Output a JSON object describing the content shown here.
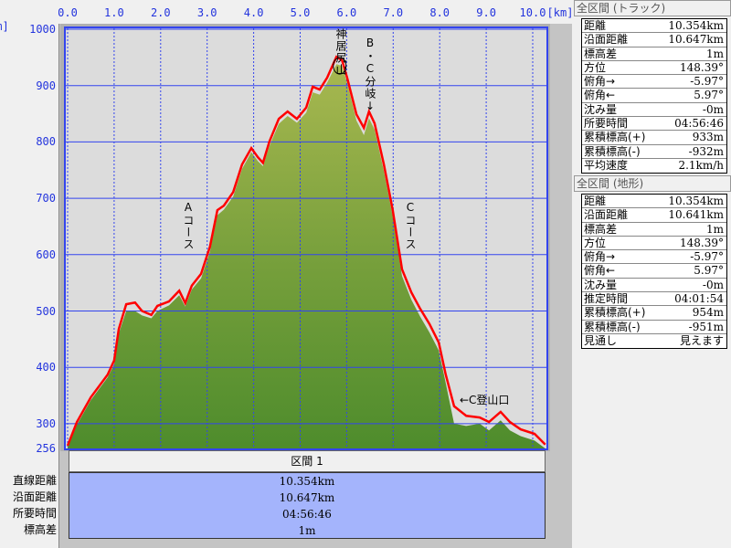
{
  "axis": {
    "x_unit": "[km]",
    "y_unit": "[m]",
    "x_ticks": [
      "0.0",
      "1.0",
      "2.0",
      "3.0",
      "4.0",
      "5.0",
      "6.0",
      "7.0",
      "8.0",
      "9.0",
      "10.0"
    ],
    "y_ticks": [
      "1000",
      "900",
      "800",
      "700",
      "600",
      "500",
      "400",
      "300",
      "256"
    ]
  },
  "chart_data": {
    "type": "area",
    "xlabel": "[km]",
    "ylabel": "[m]",
    "xlim": [
      0,
      10.3
    ],
    "ylim": [
      256,
      1000
    ],
    "grid": true,
    "series": [
      {
        "name": "track",
        "color": "#ff0000",
        "x": [
          0,
          0.2,
          0.5,
          0.86,
          1.0,
          1.1,
          1.26,
          1.45,
          1.6,
          1.8,
          1.93,
          2.18,
          2.4,
          2.53,
          2.67,
          2.87,
          3.06,
          3.22,
          3.36,
          3.56,
          3.75,
          3.95,
          4.09,
          4.2,
          4.34,
          4.54,
          4.73,
          4.93,
          5.13,
          5.27,
          5.42,
          5.58,
          5.78,
          5.9,
          6.01,
          6.21,
          6.37,
          6.48,
          6.6,
          6.8,
          6.99,
          7.19,
          7.39,
          7.58,
          7.78,
          7.98,
          8.13,
          8.31,
          8.57,
          8.86,
          9.06,
          9.31,
          9.51,
          9.74,
          10.04,
          10.27
        ],
        "y": [
          261,
          303,
          347,
          387,
          412,
          468,
          512,
          515,
          500,
          493,
          509,
          517,
          536,
          514,
          545,
          566,
          614,
          679,
          687,
          711,
          760,
          789,
          773,
          763,
          801,
          841,
          854,
          841,
          861,
          898,
          893,
          914,
          951,
          945,
          914,
          849,
          825,
          854,
          833,
          760,
          679,
          574,
          533,
          504,
          477,
          444,
          387,
          331,
          314,
          311,
          303,
          321,
          303,
          290,
          282,
          263
        ]
      },
      {
        "name": "terrain",
        "color": "#5a9a32",
        "x": [
          0,
          0.2,
          0.5,
          0.86,
          1.0,
          1.1,
          1.26,
          1.45,
          1.6,
          1.8,
          1.93,
          2.18,
          2.4,
          2.53,
          2.67,
          2.87,
          3.06,
          3.22,
          3.36,
          3.56,
          3.75,
          3.95,
          4.09,
          4.2,
          4.34,
          4.54,
          4.73,
          4.93,
          5.13,
          5.27,
          5.42,
          5.58,
          5.78,
          5.9,
          6.01,
          6.21,
          6.37,
          6.48,
          6.6,
          6.8,
          6.99,
          7.19,
          7.39,
          7.58,
          7.78,
          7.98,
          8.13,
          8.31,
          8.57,
          8.86,
          9.06,
          9.31,
          9.51,
          9.74,
          10.04,
          10.27
        ],
        "y": [
          258,
          298,
          342,
          382,
          405,
          460,
          500,
          500,
          492,
          487,
          500,
          510,
          528,
          508,
          538,
          558,
          605,
          670,
          680,
          703,
          752,
          782,
          766,
          757,
          793,
          832,
          846,
          834,
          852,
          888,
          884,
          905,
          938,
          935,
          905,
          838,
          812,
          842,
          822,
          748,
          668,
          562,
          520,
          490,
          462,
          430,
          372,
          300,
          296,
          300,
          288,
          306,
          288,
          278,
          270,
          256
        ]
      }
    ],
    "annotations": [
      "神居尻山",
      "B・C分岐↓",
      "Aコース",
      "Cコース",
      "←C登山口"
    ]
  },
  "section": {
    "header": "区間 1",
    "labels": [
      "直線距離",
      "沿面距離",
      "所要時間",
      "標高差"
    ],
    "values": [
      "10.354km",
      "10.647km",
      "04:56:46",
      "1m"
    ]
  },
  "panels": [
    {
      "title": "全区間 (トラック)",
      "rows": [
        {
          "k": "距離",
          "v": "10.354km"
        },
        {
          "k": "沿面距離",
          "v": "10.647km"
        },
        {
          "k": "標高差",
          "v": "1m"
        },
        {
          "k": "方位",
          "v": "148.39°"
        },
        {
          "k": "俯角→",
          "v": "-5.97°"
        },
        {
          "k": "俯角←",
          "v": "5.97°"
        },
        {
          "k": "沈み量",
          "v": "-0m"
        },
        {
          "k": "所要時間",
          "v": "04:56:46"
        },
        {
          "k": "累積標高(+)",
          "v": "933m"
        },
        {
          "k": "累積標高(-)",
          "v": "-932m"
        },
        {
          "k": "平均速度",
          "v": "2.1km/h"
        }
      ]
    },
    {
      "title": "全区間 (地形)",
      "rows": [
        {
          "k": "距離",
          "v": "10.354km"
        },
        {
          "k": "沿面距離",
          "v": "10.641km"
        },
        {
          "k": "標高差",
          "v": "1m"
        },
        {
          "k": "方位",
          "v": "148.39°"
        },
        {
          "k": "俯角→",
          "v": "-5.97°"
        },
        {
          "k": "俯角←",
          "v": "5.97°"
        },
        {
          "k": "沈み量",
          "v": "-0m"
        },
        {
          "k": "推定時間",
          "v": "04:01:54"
        },
        {
          "k": "累積標高(+)",
          "v": "954m"
        },
        {
          "k": "累積標高(-)",
          "v": "-951m"
        },
        {
          "k": "見通し",
          "v": "見えます"
        }
      ]
    }
  ]
}
